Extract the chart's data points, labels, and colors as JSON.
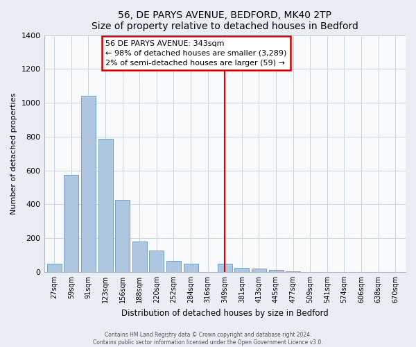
{
  "title": "56, DE PARYS AVENUE, BEDFORD, MK40 2TP",
  "subtitle": "Size of property relative to detached houses in Bedford",
  "xlabel": "Distribution of detached houses by size in Bedford",
  "ylabel": "Number of detached properties",
  "bar_labels": [
    "27sqm",
    "59sqm",
    "91sqm",
    "123sqm",
    "156sqm",
    "188sqm",
    "220sqm",
    "252sqm",
    "284sqm",
    "316sqm",
    "349sqm",
    "381sqm",
    "413sqm",
    "445sqm",
    "477sqm",
    "509sqm",
    "541sqm",
    "574sqm",
    "606sqm",
    "638sqm",
    "670sqm"
  ],
  "bar_values": [
    50,
    575,
    1040,
    785,
    425,
    180,
    125,
    65,
    50,
    0,
    50,
    25,
    20,
    10,
    5,
    0,
    0,
    0,
    0,
    0,
    0
  ],
  "bar_color": "#aec6df",
  "bar_edge_color": "#6699bb",
  "ylim": [
    0,
    1400
  ],
  "yticks": [
    0,
    200,
    400,
    600,
    800,
    1000,
    1200,
    1400
  ],
  "marker_bin_index": 10,
  "annotation_title": "56 DE PARYS AVENUE: 343sqm",
  "annotation_line1": "← 98% of detached houses are smaller (3,289)",
  "annotation_line2": "2% of semi-detached houses are larger (59) →",
  "footer1": "Contains HM Land Registry data © Crown copyright and database right 2024.",
  "footer2": "Contains public sector information licensed under the Open Government Licence v3.0.",
  "background_color": "#e8eef4",
  "plot_background": "#f8fafc",
  "grid_color": "#c8d4e0",
  "annotation_box_color": "#ffffff",
  "annotation_border_color": "#cc0000",
  "marker_line_color": "#cc0000",
  "title_fontsize": 10,
  "subtitle_fontsize": 9
}
